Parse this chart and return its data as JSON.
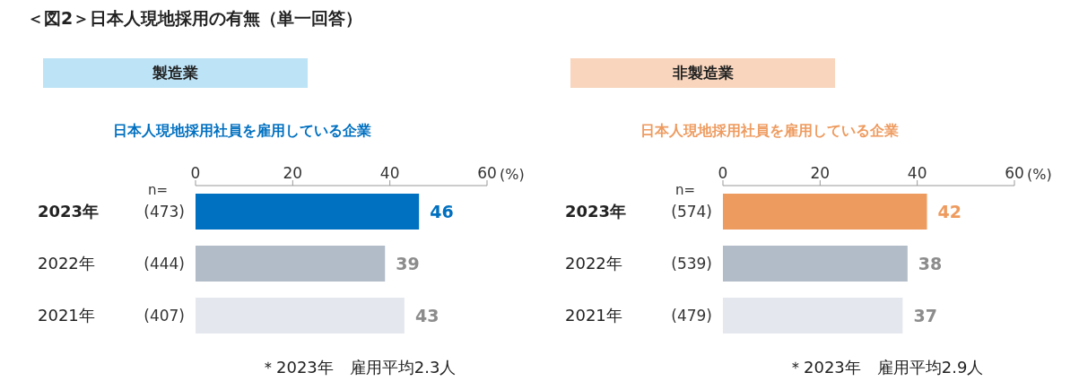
{
  "chart_data": [
    {
      "type": "bar",
      "orientation": "horizontal",
      "title": "製造業",
      "subtitle": "日本人現地採用社員を雇用している企業",
      "categories": [
        "2023年",
        "2022年",
        "2021年"
      ],
      "values": [
        46,
        39,
        43
      ],
      "colors": [
        "#0070c0",
        "#b1bcc8",
        "#e4e8ee"
      ],
      "xlim": [
        0,
        60
      ],
      "xticks": [
        0,
        20,
        40,
        60
      ],
      "xlabel": "(%)",
      "data_labels": true,
      "annotations": [
        "＜図2＞日本人現地採用の有無（単一回答）",
        "n=",
        "(473)",
        "(444)",
        "(407)",
        "＊2023年　雇用平均2.3人"
      ]
    },
    {
      "type": "bar",
      "orientation": "horizontal",
      "title": "非製造業",
      "subtitle": "日本人現地採用社員を雇用している企業",
      "categories": [
        "2023年",
        "2022年",
        "2021年"
      ],
      "values": [
        42,
        38,
        37
      ],
      "colors": [
        "#ee9b5f",
        "#b1bcc8",
        "#e4e8ee"
      ],
      "xlim": [
        0,
        60
      ],
      "xticks": [
        0,
        20,
        40,
        60
      ],
      "xlabel": "(%)",
      "data_labels": true,
      "annotations": [
        "n=",
        "(574)",
        "(539)",
        "(479)",
        "＊2023年　雇用平均2.9人"
      ]
    }
  ]
}
